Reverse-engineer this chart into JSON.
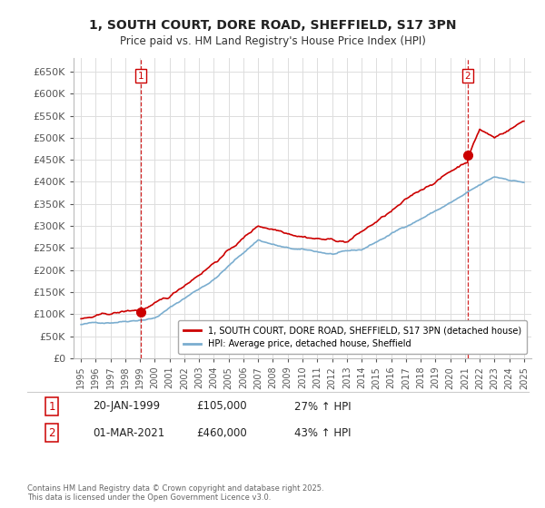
{
  "title": "1, SOUTH COURT, DORE ROAD, SHEFFIELD, S17 3PN",
  "subtitle": "Price paid vs. HM Land Registry's House Price Index (HPI)",
  "ylim": [
    0,
    680000
  ],
  "yticks": [
    0,
    50000,
    100000,
    150000,
    200000,
    250000,
    300000,
    350000,
    400000,
    450000,
    500000,
    550000,
    600000,
    650000
  ],
  "ytick_labels": [
    "£0",
    "£50K",
    "£100K",
    "£150K",
    "£200K",
    "£250K",
    "£300K",
    "£350K",
    "£400K",
    "£450K",
    "£500K",
    "£550K",
    "£600K",
    "£650K"
  ],
  "xlim": [
    1994.5,
    2025.5
  ],
  "xticks": [
    1995,
    1996,
    1997,
    1998,
    1999,
    2000,
    2001,
    2002,
    2003,
    2004,
    2005,
    2006,
    2007,
    2008,
    2009,
    2010,
    2011,
    2012,
    2013,
    2014,
    2015,
    2016,
    2017,
    2018,
    2019,
    2020,
    2021,
    2022,
    2023,
    2024,
    2025
  ],
  "legend_line1": "1, SOUTH COURT, DORE ROAD, SHEFFIELD, S17 3PN (detached house)",
  "legend_line2": "HPI: Average price, detached house, Sheffield",
  "line1_color": "#cc0000",
  "line2_color": "#7aadcf",
  "vline_color": "#cc0000",
  "marker1_x": 1999.05,
  "marker1_y": 105000,
  "marker2_x": 2021.17,
  "marker2_y": 460000,
  "sale1_label": "1",
  "sale2_label": "2",
  "sale1_date": "20-JAN-1999",
  "sale1_price": "£105,000",
  "sale1_hpi": "27% ↑ HPI",
  "sale2_date": "01-MAR-2021",
  "sale2_price": "£460,000",
  "sale2_hpi": "43% ↑ HPI",
  "copyright_text": "Contains HM Land Registry data © Crown copyright and database right 2025.\nThis data is licensed under the Open Government Licence v3.0.",
  "background_color": "#ffffff",
  "grid_color": "#dddddd",
  "title_fontsize": 10,
  "subtitle_fontsize": 8.5
}
